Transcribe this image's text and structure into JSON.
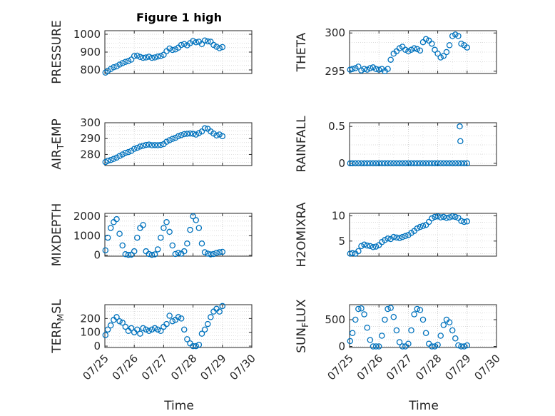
{
  "figure_title": "Figure 1 high",
  "x_axis_label": "Time",
  "x_tick_labels": [
    "07/25",
    "07/26",
    "07/27",
    "07/28",
    "07/29",
    "07/30"
  ],
  "marker_color": "#0072BD",
  "chart_data": [
    {
      "type": "scatter",
      "ylabel": "PRESSURE",
      "ylim": [
        780,
        1020
      ],
      "yticks": [
        800,
        900,
        1000
      ],
      "grid": true,
      "series": [
        {
          "x": [
            25.02,
            25.1,
            25.2,
            25.3,
            25.4,
            25.5,
            25.6,
            25.7,
            25.8,
            25.9,
            26.0,
            26.1,
            26.2,
            26.3,
            26.4,
            26.5,
            26.6,
            26.7,
            26.8,
            26.9,
            27.0,
            27.1,
            27.2,
            27.3,
            27.4,
            27.5,
            27.6,
            27.7,
            27.8,
            27.9,
            28.0,
            28.1,
            28.2,
            28.3,
            28.4,
            28.5,
            28.6,
            28.7,
            28.8,
            28.9,
            29.0
          ],
          "y": [
            785,
            795,
            805,
            815,
            820,
            830,
            838,
            845,
            850,
            858,
            878,
            880,
            873,
            868,
            870,
            874,
            868,
            870,
            875,
            878,
            885,
            905,
            920,
            912,
            915,
            925,
            940,
            945,
            938,
            950,
            962,
            955,
            958,
            945,
            965,
            960,
            958,
            940,
            930,
            922,
            928
          ]
        }
      ]
    },
    {
      "type": "scatter",
      "ylabel": "THETA",
      "ylim": [
        294.7,
        300.3
      ],
      "yticks": [
        295,
        300
      ],
      "grid": true,
      "series": [
        {
          "x": [
            25.02,
            25.1,
            25.2,
            25.3,
            25.4,
            25.5,
            25.6,
            25.7,
            25.8,
            25.9,
            26.0,
            26.1,
            26.2,
            26.3,
            26.4,
            26.5,
            26.6,
            26.7,
            26.8,
            26.9,
            27.0,
            27.1,
            27.2,
            27.3,
            27.4,
            27.5,
            27.6,
            27.7,
            27.8,
            27.9,
            28.0,
            28.1,
            28.2,
            28.3,
            28.4,
            28.5,
            28.6,
            28.7,
            28.8,
            28.9,
            29.0
          ],
          "y": [
            295.2,
            295.3,
            295.4,
            295.6,
            295.1,
            295.3,
            295.2,
            295.4,
            295.5,
            295.3,
            295.2,
            295.3,
            295.0,
            295.3,
            296.5,
            297.3,
            297.6,
            298.0,
            298.2,
            297.8,
            297.6,
            297.8,
            298.0,
            297.9,
            297.7,
            298.8,
            299.2,
            299.0,
            298.6,
            297.8,
            297.3,
            296.8,
            297.0,
            297.5,
            298.4,
            299.6,
            299.8,
            299.6,
            298.6,
            298.4,
            298.1
          ]
        }
      ]
    },
    {
      "type": "scatter",
      "ylabel": "AIR_TEMP",
      "ylim": [
        273,
        300
      ],
      "yticks": [
        280,
        290,
        300
      ],
      "grid": true,
      "series": [
        {
          "x": [
            25.02,
            25.1,
            25.2,
            25.3,
            25.4,
            25.5,
            25.6,
            25.7,
            25.8,
            25.9,
            26.0,
            26.1,
            26.2,
            26.3,
            26.4,
            26.5,
            26.6,
            26.7,
            26.8,
            26.9,
            27.0,
            27.1,
            27.2,
            27.3,
            27.4,
            27.5,
            27.6,
            27.7,
            27.8,
            27.9,
            28.0,
            28.1,
            28.2,
            28.3,
            28.4,
            28.5,
            28.6,
            28.7,
            28.8,
            28.9,
            29.0
          ],
          "y": [
            275.2,
            276.0,
            276.5,
            277.2,
            278.0,
            279.0,
            280.0,
            281.0,
            281.5,
            282.2,
            283.5,
            284.2,
            285.0,
            285.5,
            286.0,
            286.2,
            285.8,
            285.9,
            285.8,
            286.0,
            286.5,
            288.0,
            289.0,
            289.8,
            290.5,
            291.5,
            292.2,
            292.8,
            293.0,
            293.2,
            293.0,
            292.5,
            293.5,
            294.5,
            296.5,
            296.2,
            294.5,
            293.2,
            292.0,
            292.6,
            291.5
          ]
        }
      ]
    },
    {
      "type": "scatter",
      "ylabel": "RAINFALL",
      "ylim": [
        -0.03,
        0.55
      ],
      "yticks": [
        0,
        0.5
      ],
      "grid": true,
      "series": [
        {
          "x": [
            25.02,
            25.1,
            25.2,
            25.3,
            25.4,
            25.5,
            25.6,
            25.7,
            25.8,
            25.9,
            26.0,
            26.1,
            26.2,
            26.3,
            26.4,
            26.5,
            26.6,
            26.7,
            26.8,
            26.9,
            27.0,
            27.1,
            27.2,
            27.3,
            27.4,
            27.5,
            27.6,
            27.7,
            27.8,
            27.9,
            28.0,
            28.1,
            28.2,
            28.3,
            28.4,
            28.5,
            28.6,
            28.7,
            28.8,
            28.9,
            29.0,
            28.75,
            28.77
          ],
          "y": [
            0,
            0,
            0,
            0,
            0,
            0,
            0,
            0,
            0,
            0,
            0,
            0,
            0,
            0,
            0,
            0,
            0,
            0,
            0,
            0,
            0,
            0,
            0,
            0,
            0,
            0,
            0,
            0,
            0,
            0,
            0,
            0,
            0,
            0,
            0,
            0,
            0,
            0,
            0,
            0,
            0,
            0.5,
            0.3
          ]
        }
      ]
    },
    {
      "type": "scatter",
      "ylabel": "MIXDEPTH",
      "ylim": [
        -50,
        2150
      ],
      "yticks": [
        0,
        1000,
        2000
      ],
      "grid": true,
      "series": [
        {
          "x": [
            25.02,
            25.1,
            25.2,
            25.3,
            25.4,
            25.5,
            25.6,
            25.7,
            25.8,
            25.9,
            26.0,
            26.1,
            26.2,
            26.3,
            26.4,
            26.5,
            26.6,
            26.7,
            26.8,
            26.9,
            27.0,
            27.1,
            27.2,
            27.3,
            27.4,
            27.5,
            27.6,
            27.7,
            27.8,
            27.9,
            28.0,
            28.1,
            28.2,
            28.3,
            28.4,
            28.5,
            28.6,
            28.7,
            28.8,
            28.9,
            29.0
          ],
          "y": [
            250,
            900,
            1400,
            1700,
            1850,
            1100,
            500,
            50,
            20,
            30,
            200,
            900,
            1400,
            1550,
            200,
            60,
            20,
            40,
            300,
            900,
            1400,
            1700,
            1200,
            500,
            60,
            120,
            80,
            200,
            600,
            1300,
            2000,
            1800,
            1400,
            600,
            150,
            80,
            40,
            60,
            120,
            150,
            170
          ]
        }
      ]
    },
    {
      "type": "scatter",
      "ylabel": "H2OMIXRA",
      "ylim": [
        2,
        10.5
      ],
      "yticks": [
        5,
        10
      ],
      "grid": true,
      "series": [
        {
          "x": [
            25.02,
            25.1,
            25.2,
            25.3,
            25.4,
            25.5,
            25.6,
            25.7,
            25.8,
            25.9,
            26.0,
            26.1,
            26.2,
            26.3,
            26.4,
            26.5,
            26.6,
            26.7,
            26.8,
            26.9,
            27.0,
            27.1,
            27.2,
            27.3,
            27.4,
            27.5,
            27.6,
            27.7,
            27.8,
            27.9,
            28.0,
            28.1,
            28.2,
            28.3,
            28.4,
            28.5,
            28.6,
            28.7,
            28.8,
            28.9,
            29.0
          ],
          "y": [
            2.5,
            2.6,
            2.5,
            3.0,
            4.0,
            4.3,
            4.1,
            4.0,
            3.8,
            3.9,
            4.2,
            4.8,
            5.2,
            5.5,
            5.4,
            5.8,
            5.7,
            5.6,
            5.8,
            6.0,
            6.2,
            6.6,
            7.0,
            7.5,
            7.8,
            8.0,
            8.2,
            8.8,
            9.5,
            9.8,
            9.9,
            9.7,
            9.8,
            9.6,
            9.7,
            9.9,
            9.8,
            9.6,
            9.0,
            8.8,
            8.9
          ]
        }
      ]
    },
    {
      "type": "scatter",
      "ylabel": "TERR_MSL",
      "ylim": [
        -10,
        300
      ],
      "yticks": [
        0,
        100,
        200
      ],
      "grid": true,
      "series": [
        {
          "x": [
            25.02,
            25.1,
            25.2,
            25.3,
            25.4,
            25.5,
            25.6,
            25.7,
            25.8,
            25.9,
            26.0,
            26.1,
            26.2,
            26.3,
            26.4,
            26.5,
            26.6,
            26.7,
            26.8,
            26.9,
            27.0,
            27.1,
            27.2,
            27.3,
            27.4,
            27.5,
            27.6,
            27.7,
            27.8,
            27.9,
            28.0,
            28.1,
            28.2,
            28.3,
            28.4,
            28.5,
            28.6,
            28.7,
            28.8,
            28.9,
            29.0
          ],
          "y": [
            80,
            120,
            150,
            190,
            210,
            180,
            170,
            140,
            110,
            130,
            100,
            120,
            90,
            130,
            120,
            110,
            120,
            130,
            120,
            110,
            140,
            160,
            220,
            180,
            190,
            210,
            200,
            120,
            50,
            20,
            0,
            0,
            10,
            90,
            120,
            160,
            210,
            250,
            270,
            250,
            290
          ]
        }
      ]
    },
    {
      "type": "scatter",
      "ylabel": "SUN_FLUX",
      "ylim": [
        -20,
        780
      ],
      "yticks": [
        0,
        500
      ],
      "grid": true,
      "series": [
        {
          "x": [
            25.02,
            25.1,
            25.2,
            25.3,
            25.4,
            25.5,
            25.6,
            25.7,
            25.8,
            25.9,
            26.0,
            26.1,
            26.2,
            26.3,
            26.4,
            26.5,
            26.6,
            26.7,
            26.8,
            26.9,
            27.0,
            27.1,
            27.2,
            27.3,
            27.4,
            27.5,
            27.6,
            27.7,
            27.8,
            27.9,
            28.0,
            28.1,
            28.2,
            28.3,
            28.4,
            28.5,
            28.6,
            28.7,
            28.8,
            28.9,
            29.0
          ],
          "y": [
            100,
            250,
            500,
            700,
            710,
            600,
            350,
            120,
            0,
            0,
            0,
            200,
            500,
            700,
            720,
            550,
            300,
            80,
            0,
            0,
            50,
            300,
            600,
            700,
            680,
            500,
            250,
            50,
            0,
            0,
            30,
            200,
            400,
            500,
            450,
            300,
            150,
            20,
            0,
            0,
            20
          ]
        }
      ]
    }
  ]
}
